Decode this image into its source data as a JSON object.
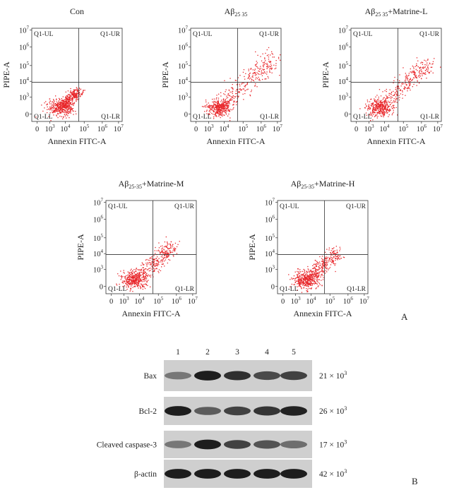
{
  "figure": {
    "panel_letters": [
      "A",
      "B"
    ]
  },
  "flow": {
    "xlabel": "Annexin FITC-A",
    "ylabel": "PIPE-A",
    "x_ticks": [
      "0",
      "10",
      "10",
      "10",
      "10",
      "10"
    ],
    "x_exps": [
      "",
      "3",
      "4",
      "5",
      "6",
      "7"
    ],
    "y_ticks": [
      "0",
      "10",
      "10",
      "10",
      "10",
      "10"
    ],
    "y_exps": [
      "",
      "3",
      "4",
      "5",
      "6",
      "7"
    ],
    "quadrants": [
      "Q1-UL",
      "Q1-UR",
      "Q1-LL",
      "Q1-LR"
    ],
    "scatter_color": "#e8262a"
  },
  "panels": [
    {
      "title_main": "Con",
      "title_sub": "",
      "title_suffix": "",
      "spread": 0.55,
      "diag": 0.35
    },
    {
      "title_main": "Aβ",
      "title_sub": "25 35",
      "title_suffix": "",
      "spread": 1.0,
      "diag": 1.0
    },
    {
      "title_main": "Aβ",
      "title_sub": "25 35",
      "title_suffix": "+Matrine-L",
      "spread": 0.95,
      "diag": 0.9
    },
    {
      "title_main": "Aβ",
      "title_sub": "25-35",
      "title_suffix": "+Matrine-M",
      "spread": 0.8,
      "diag": 0.7
    },
    {
      "title_main": "Aβ",
      "title_sub": "25-35",
      "title_suffix": "+Matrine-H",
      "spread": 0.7,
      "diag": 0.55
    }
  ],
  "blot": {
    "lanes": [
      "1",
      "2",
      "3",
      "4",
      "5"
    ],
    "rows": [
      {
        "name": "Bax",
        "size_base": "21 × 10",
        "size_exp": "3",
        "intensities": [
          0.45,
          0.95,
          0.85,
          0.7,
          0.75
        ]
      },
      {
        "name": "Bcl-2",
        "size_base": "26 × 10",
        "size_exp": "3",
        "intensities": [
          0.95,
          0.6,
          0.75,
          0.82,
          0.92
        ]
      },
      {
        "name": "Cleaved caspase-3",
        "size_base": "17 × 10",
        "size_exp": "3",
        "intensities": [
          0.45,
          0.95,
          0.75,
          0.65,
          0.5
        ]
      },
      {
        "name": "β-actin",
        "size_base": "42 × 10",
        "size_exp": "3",
        "intensities": [
          0.95,
          0.95,
          0.95,
          0.95,
          0.95
        ]
      }
    ]
  }
}
